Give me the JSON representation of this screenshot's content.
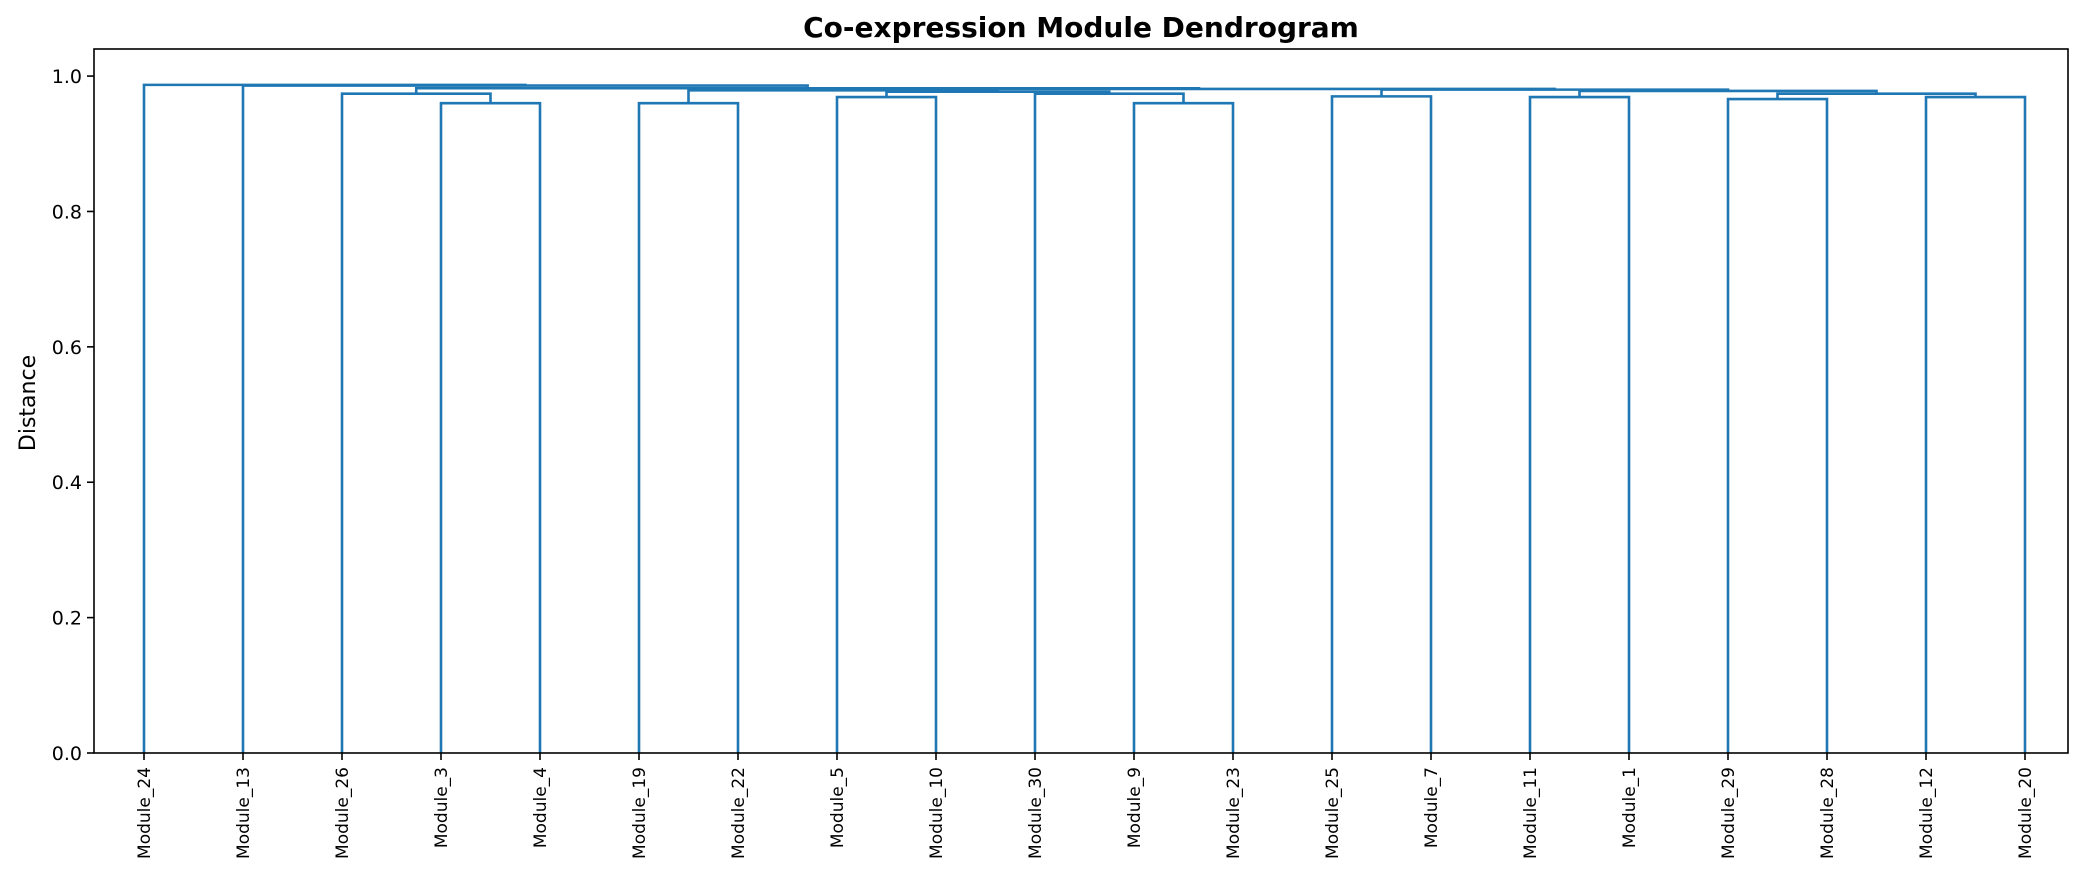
{
  "colors": {
    "link": "#1f77b4",
    "axis": "#000000",
    "background": "#ffffff"
  },
  "chart_data": {
    "type": "dendrogram",
    "title": "Co-expression Module Dendrogram",
    "xlabel": "",
    "ylabel": "Distance",
    "ylim": [
      0,
      1.04
    ],
    "yticks": [
      {
        "value": 0.0,
        "label": "0.0"
      },
      {
        "value": 0.2,
        "label": "0.2"
      },
      {
        "value": 0.4,
        "label": "0.4"
      },
      {
        "value": 0.6,
        "label": "0.6"
      },
      {
        "value": 0.8,
        "label": "0.8"
      },
      {
        "value": 1.0,
        "label": "1.0"
      }
    ],
    "grid": false,
    "leaves": [
      "Module_24",
      "Module_13",
      "Module_26",
      "Module_3",
      "Module_4",
      "Module_19",
      "Module_22",
      "Module_5",
      "Module_10",
      "Module_30",
      "Module_9",
      "Module_23",
      "Module_25",
      "Module_7",
      "Module_11",
      "Module_1",
      "Module_29",
      "Module_28",
      "Module_12",
      "Module_20"
    ],
    "merges": [
      {
        "left": "Module_3",
        "right": "Module_4",
        "height": 0.96
      },
      {
        "left": "Module_19",
        "right": "Module_22",
        "height": 0.96
      },
      {
        "left": "Module_9",
        "right": "Module_23",
        "height": 0.96
      },
      {
        "left": "Module_29",
        "right": "Module_28",
        "height": 0.966
      },
      {
        "left": "Module_5",
        "right": "Module_10",
        "height": 0.969
      },
      {
        "left": "Module_11",
        "right": "Module_1",
        "height": 0.969
      },
      {
        "left": "Module_12",
        "right": "Module_20",
        "height": 0.969
      },
      {
        "left": "Module_25",
        "right": "Module_7",
        "height": 0.97
      },
      {
        "left": "Module_26",
        "right": "Module_3 + Module_4",
        "height": 0.974
      },
      {
        "left": "Module_30",
        "right": "Module_9 + Module_23",
        "height": 0.974
      },
      {
        "left": "Module_29 + Module_28",
        "right": "Module_12 + Module_20",
        "height": 0.974
      },
      {
        "left": "Module_5 + Module_10",
        "right": "Module_30 + Module_9 + Module_23",
        "height": 0.977
      },
      {
        "left": "Module_11 + Module_1",
        "right": "Module_29 + Module_28 + Module_12 + Module_20",
        "height": 0.978
      },
      {
        "left": "Module_19 + Module_22",
        "right": "Module_5 + Module_10 + Module_30 + Module_9 + Module_23",
        "height": 0.979
      },
      {
        "left": "Module_25 + Module_7",
        "right": "Module_11 + Module_1 + Module_29 + Module_28 + Module_12 + Module_20",
        "height": 0.98
      },
      {
        "left": "Module_19 + Module_22 + Module_5 + Module_10 + Module_30 + Module_9 + Module_23",
        "right": "Module_25 + Module_7 + Module_11 + Module_1 + Module_29 + Module_28 + Module_12 + Module_20",
        "height": 0.981
      },
      {
        "left": "Module_26 + Module_3 + Module_4",
        "right": "Module_19 + Module_22 + Module_5 + Module_10 + Module_30 + Module_9 + Module_23 + Module_25 + Module_7 + Module_11 + Module_1 + Module_29 + Module_28 + Module_12 + Module_20",
        "height": 0.982
      },
      {
        "left": "Module_13",
        "right": "Module_26 + Module_3 + Module_4 + Module_19 + Module_22 + Module_5 + Module_10 + Module_30 + Module_9 + Module_23 + Module_25 + Module_7 + Module_11 + Module_1 + Module_29 + Module_28 + Module_12 + Module_20",
        "height": 0.986
      },
      {
        "left": "Module_24",
        "right": "Module_13 + Module_26 + Module_3 + Module_4 + Module_19 + Module_22 + Module_5 + Module_10 + Module_30 + Module_9 + Module_23 + Module_25 + Module_7 + Module_11 + Module_1 + Module_29 + Module_28 + Module_12 + Module_20",
        "height": 0.987
      }
    ]
  }
}
